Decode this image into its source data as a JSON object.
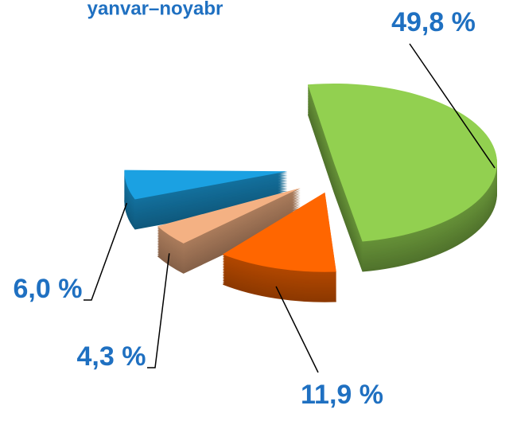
{
  "chart_data": {
    "type": "pie",
    "title": "yanvar–noyabr",
    "values": [
      49.8,
      11.9,
      4.3,
      6.0
    ],
    "value_labels": [
      "49,8 %",
      "11,9 %",
      "4,3 %",
      "6,0 %"
    ],
    "colors": [
      "#92d050",
      "#ff6600",
      "#f4b183",
      "#1ba1e2"
    ]
  }
}
